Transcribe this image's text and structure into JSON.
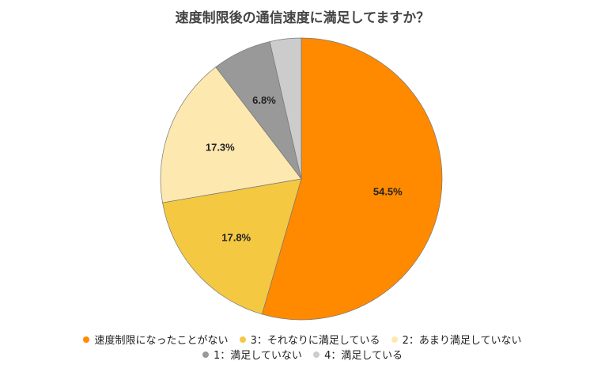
{
  "chart_data": {
    "type": "pie",
    "title": "速度制限後の通信速度に満足してますか？",
    "categories": [
      "速度制限になったことがない",
      "3：それなりに満足している",
      "2：あまり満足していない",
      "1：満足していない",
      "4：満足している"
    ],
    "values": [
      54.5,
      17.8,
      17.3,
      6.8,
      3.6
    ],
    "labels": [
      "54.5%",
      "17.8%",
      "17.3%",
      "6.8%",
      ""
    ],
    "colors": [
      "#ff8a00",
      "#f5c842",
      "#fde9b0",
      "#999999",
      "#cccccc"
    ],
    "start_angle_deg": 0,
    "direction": "clockwise",
    "legend_position": "bottom"
  },
  "title": "速度制限後の通信速度に満足してますか？",
  "legend": {
    "row1": [
      {
        "label": "速度制限になったことがない",
        "color": "#ff8a00"
      },
      {
        "label": "3：それなりに満足している",
        "color": "#f5c842"
      },
      {
        "label": "2：あまり満足していない",
        "color": "#fde9b0"
      }
    ],
    "row2": [
      {
        "label": "1：満足していない",
        "color": "#999999"
      },
      {
        "label": "4：満足している",
        "color": "#cccccc"
      }
    ]
  }
}
